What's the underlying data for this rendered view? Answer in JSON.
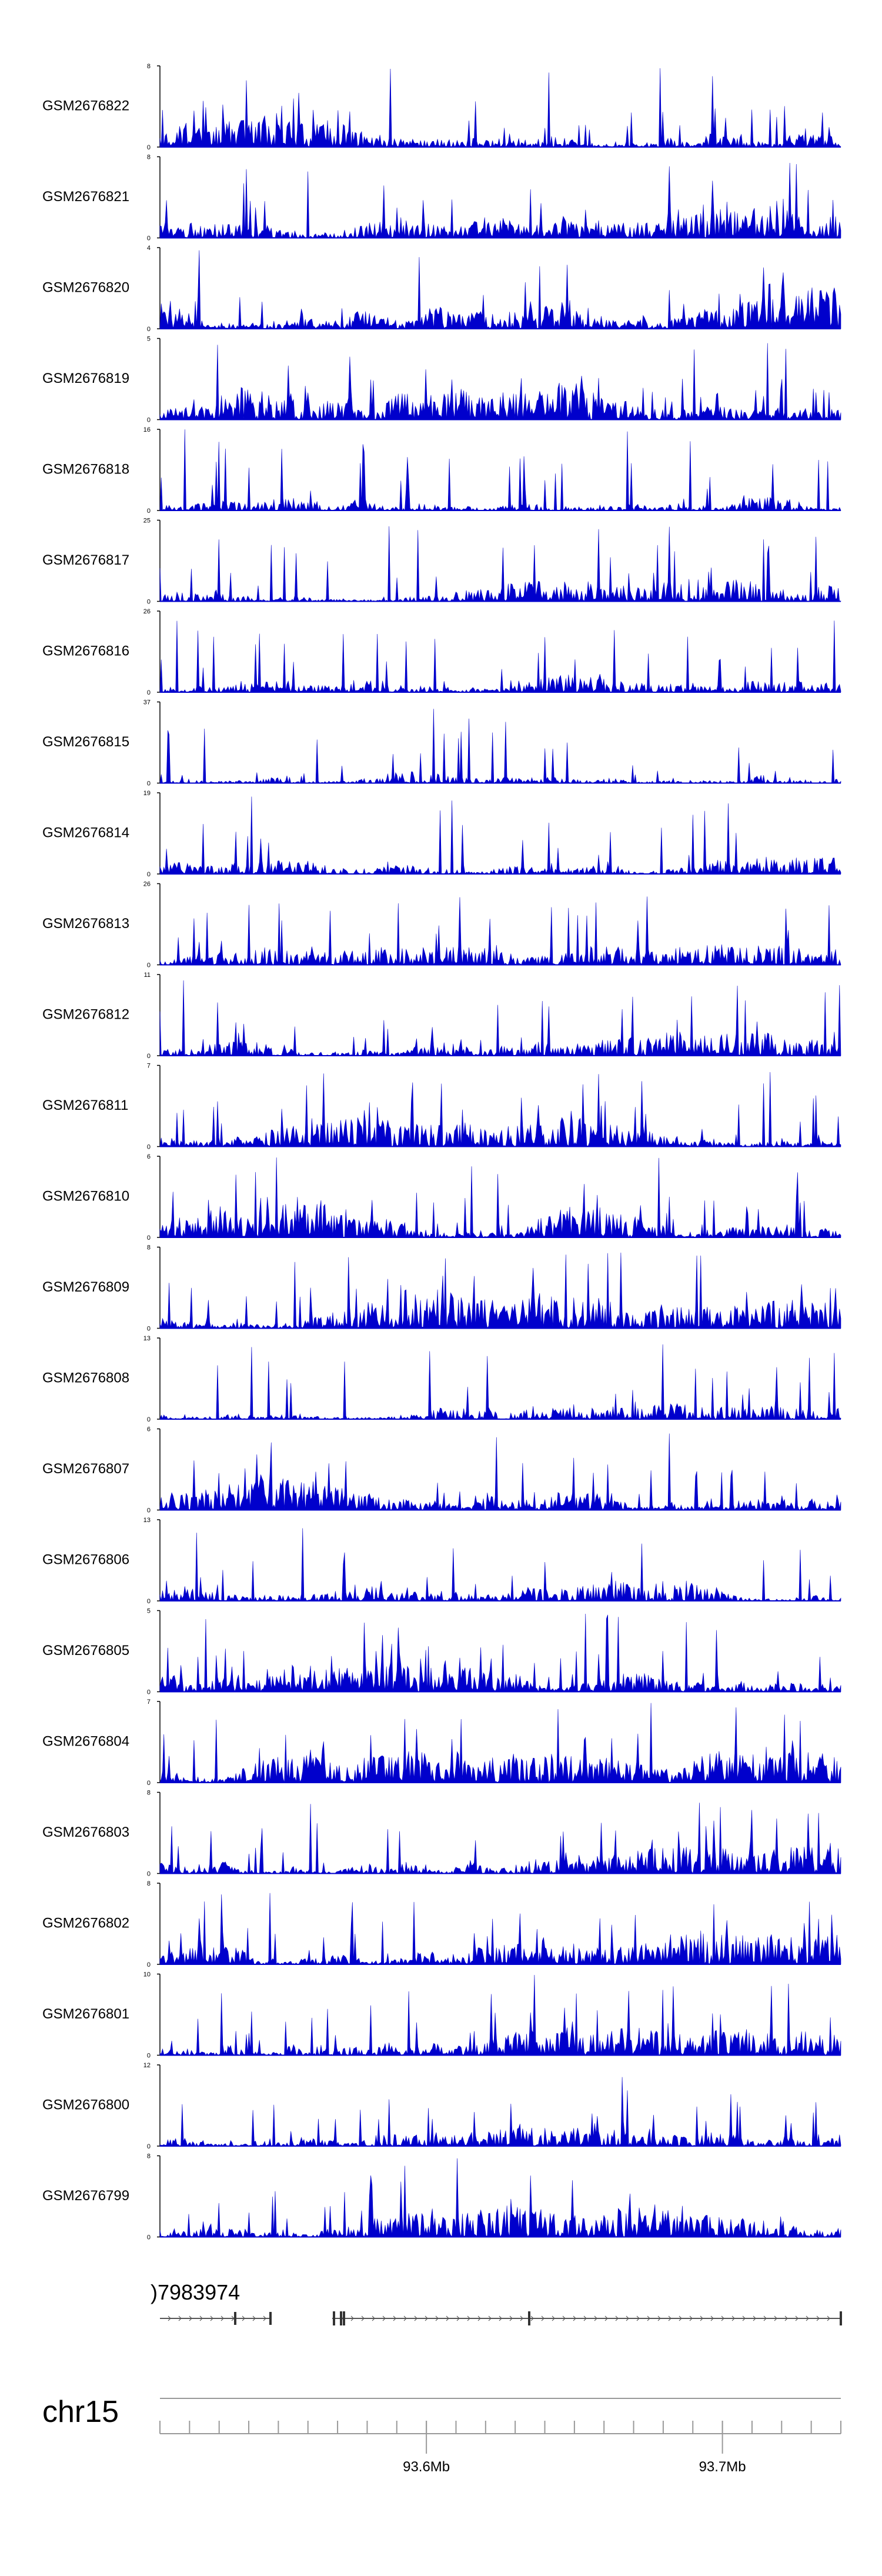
{
  "chart_data": {
    "type": "area",
    "title": "",
    "xlabel": "",
    "ylabel": "",
    "track_color": "#0000cc",
    "x_range_mb": [
      93.51,
      93.74
    ],
    "tracks": [
      {
        "name": "GSM2676822",
        "ymax": "8",
        "ymin": "0",
        "max_value": 8,
        "peakiness": 0.35,
        "seed": 822
      },
      {
        "name": "GSM2676821",
        "ymax": "8",
        "ymin": "0",
        "max_value": 8,
        "peakiness": 0.4,
        "seed": 821
      },
      {
        "name": "GSM2676820",
        "ymax": "4",
        "ymin": "0",
        "max_value": 4,
        "peakiness": 0.15,
        "seed": 820
      },
      {
        "name": "GSM2676819",
        "ymax": "5",
        "ymin": "0",
        "max_value": 5,
        "peakiness": 0.25,
        "seed": 819
      },
      {
        "name": "GSM2676818",
        "ymax": "16",
        "ymin": "0",
        "max_value": 16,
        "peakiness": 0.7,
        "seed": 818
      },
      {
        "name": "GSM2676817",
        "ymax": "25",
        "ymin": "0",
        "max_value": 25,
        "peakiness": 0.75,
        "seed": 817
      },
      {
        "name": "GSM2676816",
        "ymax": "26",
        "ymin": "0",
        "max_value": 26,
        "peakiness": 0.75,
        "seed": 816
      },
      {
        "name": "GSM2676815",
        "ymax": "37",
        "ymin": "0",
        "max_value": 37,
        "peakiness": 0.8,
        "seed": 815
      },
      {
        "name": "GSM2676814",
        "ymax": "19",
        "ymin": "0",
        "max_value": 19,
        "peakiness": 0.7,
        "seed": 814
      },
      {
        "name": "GSM2676813",
        "ymax": "26",
        "ymin": "0",
        "max_value": 26,
        "peakiness": 0.75,
        "seed": 813
      },
      {
        "name": "GSM2676812",
        "ymax": "11",
        "ymin": "0",
        "max_value": 11,
        "peakiness": 0.6,
        "seed": 812
      },
      {
        "name": "GSM2676811",
        "ymax": "7",
        "ymin": "0",
        "max_value": 7,
        "peakiness": 0.55,
        "seed": 811
      },
      {
        "name": "GSM2676810",
        "ymax": "6",
        "ymin": "0",
        "max_value": 6,
        "peakiness": 0.35,
        "seed": 810
      },
      {
        "name": "GSM2676809",
        "ymax": "8",
        "ymin": "0",
        "max_value": 8,
        "peakiness": 0.45,
        "seed": 809
      },
      {
        "name": "GSM2676808",
        "ymax": "13",
        "ymin": "0",
        "max_value": 13,
        "peakiness": 0.8,
        "seed": 808
      },
      {
        "name": "GSM2676807",
        "ymax": "6",
        "ymin": "0",
        "max_value": 6,
        "peakiness": 0.35,
        "seed": 807
      },
      {
        "name": "GSM2676806",
        "ymax": "13",
        "ymin": "0",
        "max_value": 13,
        "peakiness": 0.7,
        "seed": 806
      },
      {
        "name": "GSM2676805",
        "ymax": "5",
        "ymin": "0",
        "max_value": 5,
        "peakiness": 0.25,
        "seed": 805
      },
      {
        "name": "GSM2676804",
        "ymax": "7",
        "ymin": "0",
        "max_value": 7,
        "peakiness": 0.45,
        "seed": 804
      },
      {
        "name": "GSM2676803",
        "ymax": "8",
        "ymin": "0",
        "max_value": 8,
        "peakiness": 0.5,
        "seed": 803
      },
      {
        "name": "GSM2676802",
        "ymax": "8",
        "ymin": "0",
        "max_value": 8,
        "peakiness": 0.5,
        "seed": 802
      },
      {
        "name": "GSM2676801",
        "ymax": "10",
        "ymin": "0",
        "max_value": 10,
        "peakiness": 0.6,
        "seed": 801
      },
      {
        "name": "GSM2676800",
        "ymax": "12",
        "ymin": "0",
        "max_value": 12,
        "peakiness": 0.6,
        "seed": 800
      },
      {
        "name": "GSM2676799",
        "ymax": "8",
        "ymin": "0",
        "max_value": 8,
        "peakiness": 0.5,
        "seed": 799
      }
    ],
    "gene_track": {
      "label": ")7983974"
    },
    "chromosome": "chr15",
    "axis_ticks": [
      {
        "label": "93.6Mb",
        "value_mb": 93.6
      },
      {
        "label": "93.7Mb",
        "value_mb": 93.7
      }
    ]
  }
}
